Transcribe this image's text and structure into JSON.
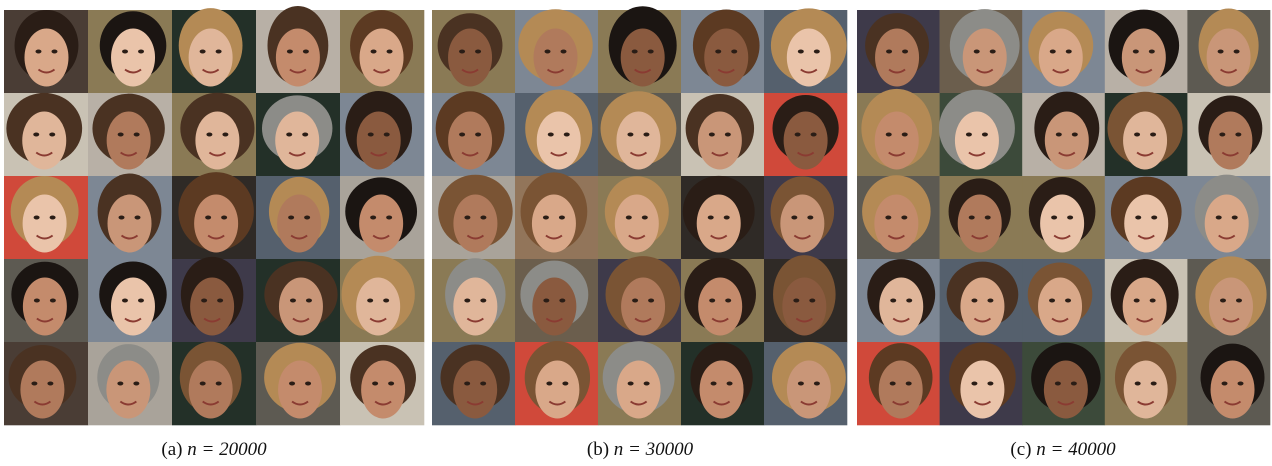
{
  "panels": [
    {
      "label": "(a)",
      "caption": "n = 20000"
    },
    {
      "label": "(b)",
      "caption": "n = 30000"
    },
    {
      "label": "(c)",
      "caption": "n = 40000"
    }
  ]
}
